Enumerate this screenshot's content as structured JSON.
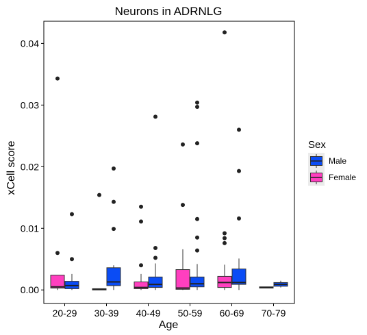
{
  "chart_data": {
    "type": "boxplot",
    "title": "Neurons in ADRNLG",
    "xlabel": "Age",
    "ylabel": "xCell score",
    "categories": [
      "20-29",
      "30-39",
      "40-49",
      "50-59",
      "60-69",
      "70-79"
    ],
    "y_ticks": [
      0.0,
      0.01,
      0.02,
      0.03,
      0.04
    ],
    "y_tick_labels": [
      "0.00",
      "0.01",
      "0.02",
      "0.03",
      "0.04"
    ],
    "ylim": [
      -0.0022,
      0.0436
    ],
    "grid": false,
    "legend": {
      "title": "Sex",
      "position": "right",
      "entries": [
        {
          "label": "Male",
          "color": "#0a4cf5"
        },
        {
          "label": "Female",
          "color": "#ff3fbf"
        }
      ]
    },
    "series": [
      {
        "name": "Female",
        "color": "#ff3fbf",
        "boxes": [
          {
            "category": "20-29",
            "q1": 0.0003,
            "median": 0.0005,
            "q3": 0.0024,
            "whisker_low": 0.0,
            "whisker_high": 0.0024,
            "outliers": [
              0.0343,
              0.006
            ]
          },
          {
            "category": "30-39",
            "q1": 0.0,
            "median": 0.0001,
            "q3": 0.0002,
            "whisker_low": 0.0,
            "whisker_high": 0.0002,
            "outliers": [
              0.0154
            ]
          },
          {
            "category": "40-49",
            "q1": 0.0002,
            "median": 0.0004,
            "q3": 0.0013,
            "whisker_low": 0.0,
            "whisker_high": 0.0026,
            "outliers": [
              0.0135,
              0.0111,
              0.004
            ]
          },
          {
            "category": "50-59",
            "q1": 0.0001,
            "median": 0.0003,
            "q3": 0.0033,
            "whisker_low": 0.0,
            "whisker_high": 0.0066,
            "outliers": [
              0.0236,
              0.0138
            ]
          },
          {
            "category": "60-69",
            "q1": 0.0004,
            "median": 0.0012,
            "q3": 0.0022,
            "whisker_low": 0.0,
            "whisker_high": 0.0041,
            "outliers": [
              0.0418,
              0.0092,
              0.0084,
              0.0076
            ]
          },
          {
            "category": "70-79",
            "q1": 0.0003,
            "median": 0.0004,
            "q3": 0.0005,
            "whisker_low": 0.0003,
            "whisker_high": 0.0005,
            "outliers": []
          }
        ]
      },
      {
        "name": "Male",
        "color": "#0a4cf5",
        "boxes": [
          {
            "category": "20-29",
            "q1": 0.0002,
            "median": 0.0007,
            "q3": 0.0014,
            "whisker_low": 0.0,
            "whisker_high": 0.0026,
            "outliers": [
              0.0123,
              0.005
            ]
          },
          {
            "category": "30-39",
            "q1": 0.0007,
            "median": 0.0013,
            "q3": 0.0036,
            "whisker_low": 0.0,
            "whisker_high": 0.004,
            "outliers": [
              0.0197,
              0.0143,
              0.0099
            ]
          },
          {
            "category": "40-49",
            "q1": 0.0004,
            "median": 0.0009,
            "q3": 0.0021,
            "whisker_low": 0.0,
            "whisker_high": 0.0043,
            "outliers": [
              0.0281,
              0.0068,
              0.0052
            ]
          },
          {
            "category": "50-59",
            "q1": 0.0005,
            "median": 0.001,
            "q3": 0.0021,
            "whisker_low": 0.0,
            "whisker_high": 0.0042,
            "outliers": [
              0.0304,
              0.0297,
              0.0238,
              0.0115,
              0.0085,
              0.0064
            ]
          },
          {
            "category": "60-69",
            "q1": 0.0009,
            "median": 0.0012,
            "q3": 0.0034,
            "whisker_low": 0.0,
            "whisker_high": 0.0051,
            "outliers": [
              0.026,
              0.0193,
              0.0116
            ]
          },
          {
            "category": "70-79",
            "q1": 0.0006,
            "median": 0.0009,
            "q3": 0.0012,
            "whisker_low": 0.0004,
            "whisker_high": 0.0015,
            "outliers": []
          }
        ]
      }
    ]
  }
}
